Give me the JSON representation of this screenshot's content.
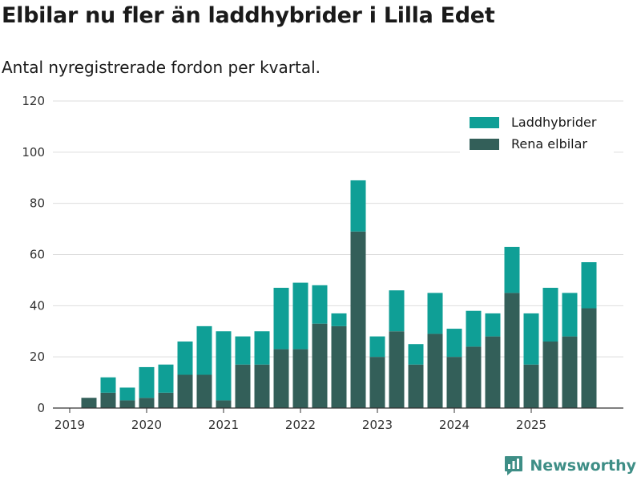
{
  "page": {
    "title": "Elbilar nu fler än laddhybrider i Lilla Edet",
    "subtitle": "Antal nyregistrerade fordon per kvartal.",
    "brand": "Newsworthy"
  },
  "colors": {
    "laddhybrider": "#0f9f96",
    "elbilar": "#335f59",
    "grid": "#dddddd",
    "axis": "#333333",
    "brand": "#3e8e86"
  },
  "chart_data": {
    "type": "bar",
    "stacked": true,
    "categories": [
      "2019 Q1",
      "2019 Q2",
      "2019 Q3",
      "2019 Q4",
      "2020 Q1",
      "2020 Q2",
      "2020 Q3",
      "2020 Q4",
      "2021 Q1",
      "2021 Q2",
      "2021 Q3",
      "2021 Q4",
      "2022 Q1",
      "2022 Q2",
      "2022 Q3",
      "2022 Q4",
      "2023 Q1",
      "2023 Q2",
      "2023 Q3",
      "2023 Q4",
      "2024 Q1",
      "2024 Q2",
      "2024 Q3",
      "2024 Q4",
      "2025 Q1",
      "2025 Q2",
      "2025 Q3",
      "2025 Q4"
    ],
    "series": [
      {
        "name": "Rena elbilar",
        "color_key": "elbilar",
        "values": [
          0,
          4,
          6,
          3,
          4,
          6,
          13,
          13,
          3,
          17,
          17,
          23,
          23,
          33,
          32,
          69,
          20,
          30,
          17,
          29,
          20,
          24,
          28,
          45,
          17,
          26,
          28,
          39
        ]
      },
      {
        "name": "Laddhybrider",
        "color_key": "laddhybrider",
        "values": [
          0,
          0,
          6,
          5,
          12,
          11,
          13,
          19,
          27,
          11,
          13,
          24,
          26,
          15,
          5,
          20,
          8,
          16,
          8,
          16,
          11,
          14,
          9,
          18,
          20,
          21,
          17,
          18
        ]
      }
    ],
    "legend": [
      {
        "name": "Laddhybrider",
        "color_key": "laddhybrider"
      },
      {
        "name": "Rena elbilar",
        "color_key": "elbilar"
      }
    ],
    "legend_position": "top-right",
    "x_tick_labels": [
      "2019",
      "2020",
      "2021",
      "2022",
      "2023",
      "2024",
      "2025"
    ],
    "y_ticks": [
      0,
      20,
      40,
      60,
      80,
      100,
      120
    ],
    "ylim": [
      0,
      120
    ],
    "xlabel": "",
    "ylabel": "",
    "grid": true
  }
}
